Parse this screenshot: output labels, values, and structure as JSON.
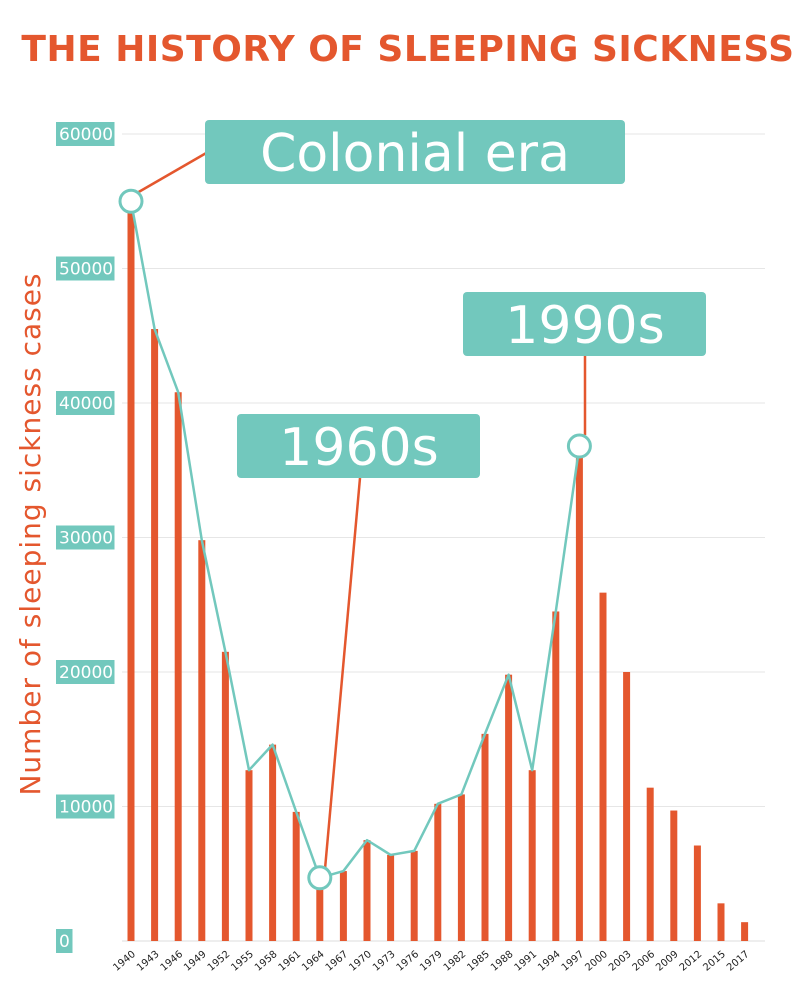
{
  "chart_data": {
    "type": "bar",
    "title": "THE HISTORY OF SLEEPING SICKNESS",
    "ylabel": "Number of sleeping sickness cases",
    "xlabel": "",
    "ylim": [
      0,
      60000
    ],
    "yticks": [
      "0",
      "10000",
      "20000",
      "30000",
      "40000",
      "50000",
      "60000"
    ],
    "grid": true,
    "categories": [
      "1940",
      "1943",
      "1946",
      "1949",
      "1952",
      "1955",
      "1958",
      "1961",
      "1964",
      "1967",
      "1970",
      "1973",
      "1976",
      "1979",
      "1982",
      "1985",
      "1988",
      "1991",
      "1994",
      "1997",
      "2000",
      "2003",
      "2006",
      "2009",
      "2012",
      "2015",
      "2017"
    ],
    "values": [
      55000,
      45500,
      40800,
      29800,
      21500,
      12700,
      14600,
      9600,
      4700,
      5200,
      7500,
      6400,
      6700,
      10200,
      10900,
      15400,
      19800,
      12700,
      24500,
      36800,
      25900,
      20000,
      11400,
      9700,
      7100,
      2800,
      1400
    ],
    "trend_line": {
      "categories": [
        "1940",
        "1943",
        "1946",
        "1949",
        "1952",
        "1955",
        "1958",
        "1961",
        "1964",
        "1967",
        "1970",
        "1973",
        "1976",
        "1979",
        "1982",
        "1985",
        "1988",
        "1991",
        "1994",
        "1997"
      ],
      "values": [
        55000,
        45500,
        40800,
        29800,
        21500,
        12700,
        14600,
        9600,
        4700,
        5200,
        7500,
        6400,
        6700,
        10200,
        10900,
        15400,
        19800,
        12700,
        24500,
        36800
      ]
    },
    "annotations": [
      {
        "text": "Colonial era",
        "category": "1940",
        "value": 55000
      },
      {
        "text": "1960s",
        "category": "1964",
        "value": 4700
      },
      {
        "text": "1990s",
        "category": "1997",
        "value": 36800
      }
    ]
  },
  "colors": {
    "bar": "#e4572e",
    "line": "#72c8bd",
    "grid": "#e6e6e6",
    "title": "#e4572e",
    "annotation_box": "#72c8bd"
  }
}
